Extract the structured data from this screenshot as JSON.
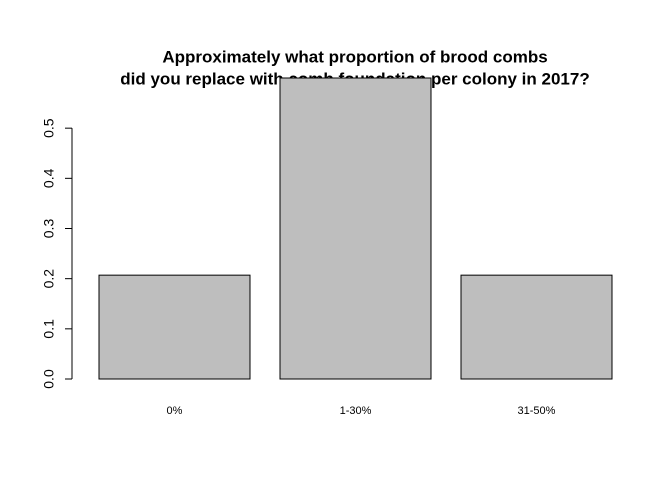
{
  "chart_data": {
    "type": "bar",
    "title": [
      "Approximately what proportion of brood combs",
      "did you replace with comb foundation per colony in 2017?"
    ],
    "categories": [
      "0%",
      "1-30%",
      "31-50%"
    ],
    "values": [
      0.207,
      0.6,
      0.207
    ],
    "color": "#bebebe",
    "ylim": [
      0,
      0.6
    ],
    "yticks": [
      {
        "value": 0,
        "label": "0.0"
      },
      0.1,
      0.2,
      0.3,
      0.4,
      0.5
    ],
    "grid": false
  }
}
